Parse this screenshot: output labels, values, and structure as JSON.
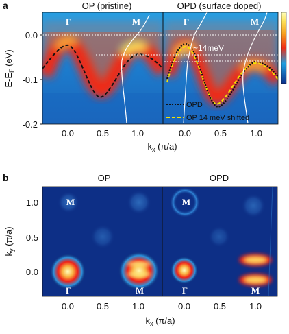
{
  "figure": {
    "panel_a": {
      "label": "a",
      "title_left": "OP (pristine)",
      "title_right": "OPD (surface doped)",
      "ylabel": "E-E",
      "ylabel_sub": "F",
      "ylabel_unit": " (eV)",
      "xlabel_k": "k",
      "xlabel_sub": "x",
      "xlabel_unit": " (π/a)",
      "yticks": [
        "0.0",
        "-0.1",
        "-0.2"
      ],
      "xticks_left": [
        "0.0",
        "0.5",
        "1.0"
      ],
      "xticks_right": [
        "0.0",
        "0.5",
        "1.0"
      ],
      "sym_gamma": "Γ",
      "sym_m": "M",
      "annotation": "~14meV",
      "legend": [
        "OPD",
        "OP 14 meV shifted"
      ],
      "colors": {
        "opd_dots": "#111111",
        "op_shifted": "#f2e600",
        "op_dashes": "#111111"
      }
    },
    "panel_b": {
      "label": "b",
      "title_left": "OP",
      "title_right": "OPD",
      "ylabel_k": "k",
      "ylabel_sub": "y",
      "ylabel_unit": " (π/a)",
      "xlabel_k": "k",
      "xlabel_sub": "x",
      "xlabel_unit": " (π/a)",
      "yticks": [
        "1.0",
        "0.5",
        "0.0"
      ],
      "xticks_left": [
        "0.0",
        "0.5",
        "1.0"
      ],
      "xticks_right": [
        "0.0",
        "0.5",
        "1.0"
      ],
      "sym_gamma": "Γ",
      "sym_m": "M"
    },
    "colors": {
      "cmap_low": "#0b2f8a",
      "cmap_mid": "#1e9fe0",
      "cmap_high": "#f21a1a",
      "cmap_top": "#ffffbe"
    }
  }
}
